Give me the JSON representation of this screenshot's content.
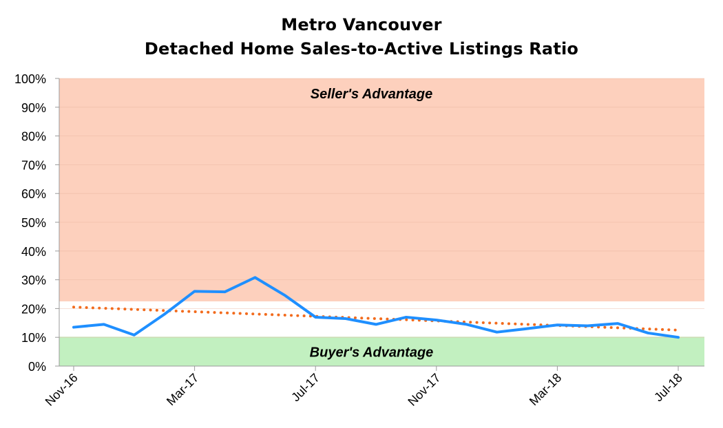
{
  "title_line_1": "Metro Vancouver",
  "title_line_2": "Detached Home Sales-to-Active Listings Ratio",
  "chart_data": {
    "type": "line",
    "title": "Metro Vancouver Detached Home Sales-to-Active Listings Ratio",
    "xlabel": "",
    "ylabel": "",
    "y_tick_labels": [
      "0%",
      "10%",
      "20%",
      "30%",
      "40%",
      "50%",
      "60%",
      "70%",
      "80%",
      "90%",
      "100%"
    ],
    "ylim": [
      0,
      100
    ],
    "x_tick_labels": [
      "Nov-16",
      "Mar-17",
      "Jul-17",
      "Nov-17",
      "Mar-18",
      "Jul-18"
    ],
    "x": [
      "Nov-16",
      "Dec-16",
      "Jan-17",
      "Feb-17",
      "Mar-17",
      "Apr-17",
      "May-17",
      "Jun-17",
      "Jul-17",
      "Aug-17",
      "Sep-17",
      "Oct-17",
      "Nov-17",
      "Dec-17",
      "Jan-18",
      "Feb-18",
      "Mar-18",
      "Apr-18",
      "May-18",
      "Jun-18",
      "Jul-18"
    ],
    "series": [
      {
        "name": "",
        "color": "#1f8fff",
        "values": [
          13.5,
          14.5,
          10.8,
          18.0,
          26.0,
          25.8,
          30.8,
          24.5,
          17.0,
          16.5,
          14.5,
          17.0,
          16.0,
          14.5,
          11.8,
          13.0,
          14.3,
          14.0,
          14.8,
          11.5,
          10.0
        ]
      }
    ],
    "trendline": {
      "style": "dotted",
      "color": "#f26b1d",
      "start": 20.5,
      "end": 12.5
    },
    "zones": [
      {
        "label": "Seller's Advantage",
        "from": 22.5,
        "to": 100,
        "color": "#fdd0bd"
      },
      {
        "label": "Buyer's Advantage",
        "from": 0,
        "to": 10.2,
        "color": "#c2f0c0"
      }
    ],
    "grid": true,
    "legend": "none"
  }
}
